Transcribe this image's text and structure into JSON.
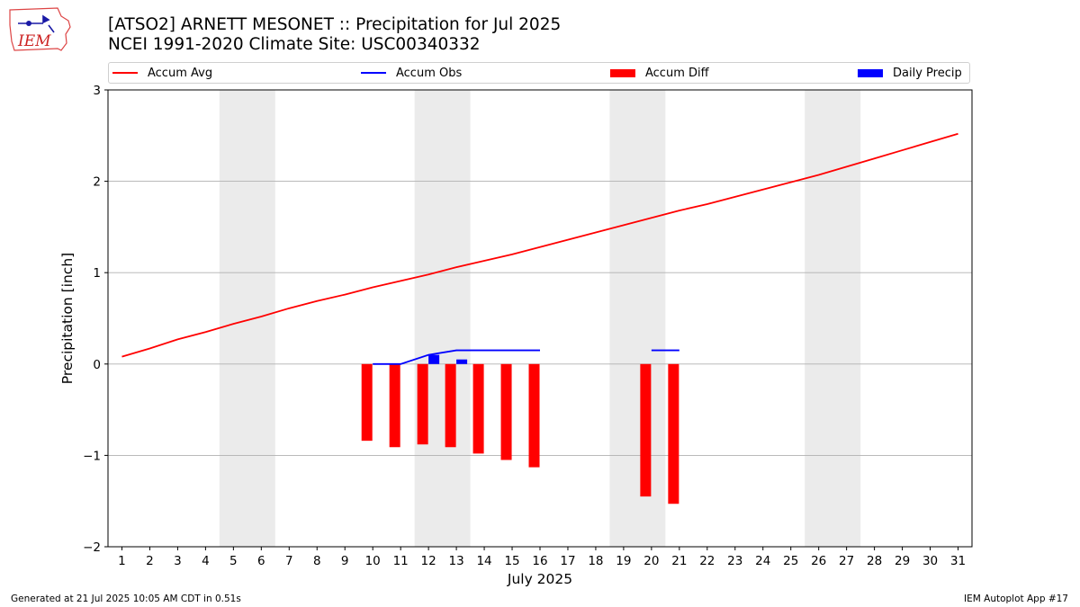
{
  "header": {
    "logo_text": "IEM",
    "title_line1": "[ATSO2] ARNETT MESONET :: Precipitation for Jul 2025",
    "title_line2": "NCEI 1991-2020 Climate Site: USC00340332"
  },
  "legend": {
    "items": [
      {
        "label": "Accum Avg",
        "kind": "line",
        "color": "#ff0000"
      },
      {
        "label": "Accum Obs",
        "kind": "line",
        "color": "#0000ff"
      },
      {
        "label": "Accum Diff",
        "kind": "patch",
        "color": "#ff0000"
      },
      {
        "label": "Daily Precip",
        "kind": "patch",
        "color": "#0000ff"
      }
    ]
  },
  "footer": {
    "left": "Generated at 21 Jul 2025 10:05 AM CDT in 0.51s",
    "right": "IEM Autoplot App #17"
  },
  "chart_data": {
    "type": "bar",
    "title": "[ATSO2] ARNETT MESONET :: Precipitation for Jul 2025",
    "subtitle": "NCEI 1991-2020 Climate Site: USC00340332",
    "xlabel": "July 2025",
    "ylabel": "Precipitation [inch]",
    "xlim": [
      0.5,
      31.5
    ],
    "ylim": [
      -2.0,
      3.0
    ],
    "x_ticks": [
      1,
      2,
      3,
      4,
      5,
      6,
      7,
      8,
      9,
      10,
      11,
      12,
      13,
      14,
      15,
      16,
      17,
      18,
      19,
      20,
      21,
      22,
      23,
      24,
      25,
      26,
      27,
      28,
      29,
      30,
      31
    ],
    "y_ticks": [
      -2,
      -1,
      0,
      1,
      2,
      3
    ],
    "y_tick_labels": [
      "−2",
      "−1",
      "0",
      "1",
      "2",
      "3"
    ],
    "grid": "horizontal",
    "legend_position": "top",
    "weekend_shading": [
      [
        4.5,
        6.5
      ],
      [
        11.5,
        13.5
      ],
      [
        18.5,
        20.5
      ],
      [
        25.5,
        27.5
      ]
    ],
    "series": [
      {
        "name": "Accum Avg",
        "type": "line",
        "color": "#ff0000",
        "x": [
          1,
          2,
          3,
          4,
          5,
          6,
          7,
          8,
          9,
          10,
          11,
          12,
          13,
          14,
          15,
          16,
          17,
          18,
          19,
          20,
          21,
          22,
          23,
          24,
          25,
          26,
          27,
          28,
          29,
          30,
          31
        ],
        "values": [
          0.08,
          0.17,
          0.27,
          0.35,
          0.44,
          0.52,
          0.61,
          0.69,
          0.76,
          0.84,
          0.91,
          0.98,
          1.06,
          1.13,
          1.2,
          1.28,
          1.36,
          1.44,
          1.52,
          1.6,
          1.68,
          1.75,
          1.83,
          1.91,
          1.99,
          2.07,
          2.16,
          2.25,
          2.34,
          2.43,
          2.52
        ]
      },
      {
        "name": "Accum Obs",
        "type": "line",
        "color": "#0000ff",
        "segments": [
          {
            "x": [
              10,
              11,
              12,
              13,
              14,
              15,
              16
            ],
            "values": [
              0.0,
              0.0,
              0.1,
              0.15,
              0.15,
              0.15,
              0.15
            ]
          },
          {
            "x": [
              20,
              21
            ],
            "values": [
              0.15,
              0.15
            ]
          }
        ]
      },
      {
        "name": "Accum Diff",
        "type": "bar",
        "color": "#ff0000",
        "x": [
          10,
          11,
          12,
          13,
          14,
          15,
          16,
          20,
          21
        ],
        "values": [
          -0.84,
          -0.91,
          -0.88,
          -0.91,
          -0.98,
          -1.05,
          -1.13,
          -1.45,
          -1.53
        ]
      },
      {
        "name": "Daily Precip",
        "type": "bar",
        "color": "#0000ff",
        "x": [
          12,
          13
        ],
        "values": [
          0.1,
          0.05
        ]
      }
    ]
  }
}
